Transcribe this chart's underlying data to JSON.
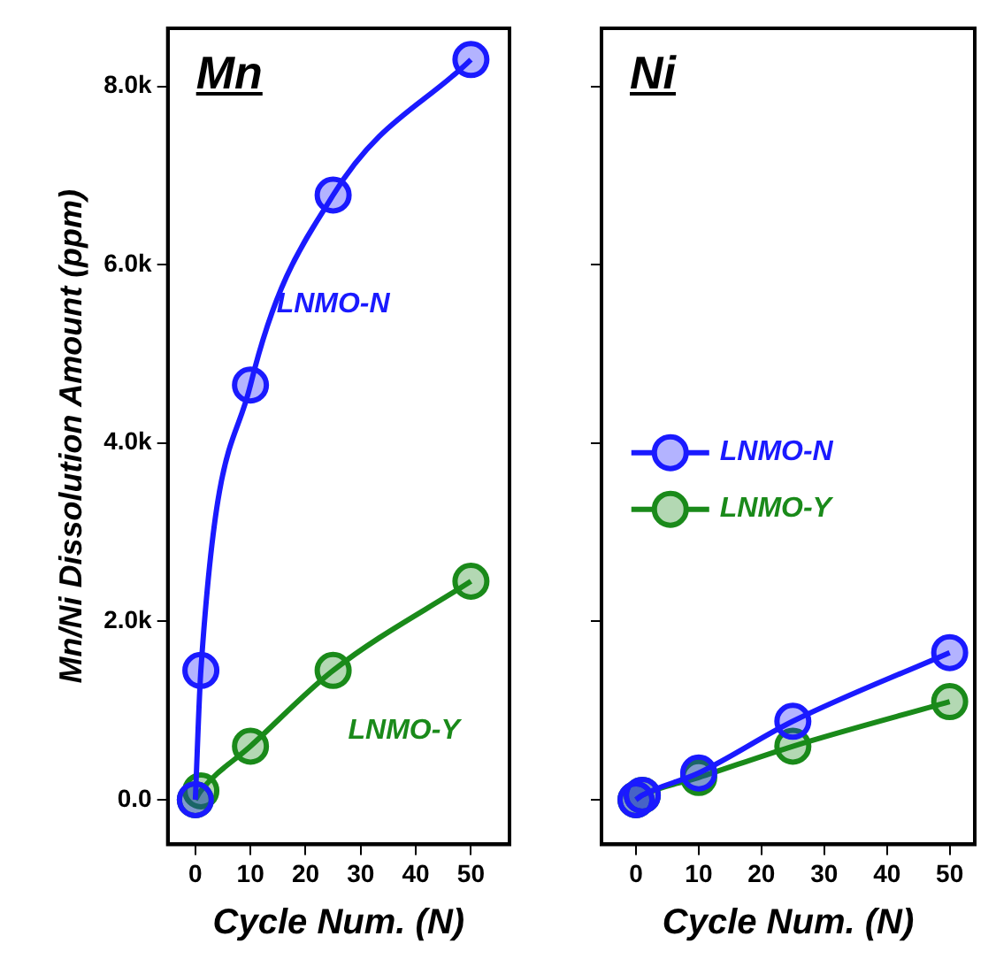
{
  "chart_data": [
    {
      "type": "line",
      "title": "Mn",
      "xlabel": "Cycle Num. (N)",
      "ylabel": "Mn/Ni Dissolution Amount (ppm)",
      "x": [
        0,
        1,
        10,
        25,
        50
      ],
      "xlim": [
        -5,
        57
      ],
      "xticks": [
        0,
        10,
        20,
        30,
        40,
        50
      ],
      "ylim": [
        -500,
        8650
      ],
      "yticks": [
        {
          "value": 0,
          "label": "0.0"
        },
        {
          "value": 2000,
          "label": "2.0k"
        },
        {
          "value": 4000,
          "label": "4.0k"
        },
        {
          "value": 6000,
          "label": "6.0k"
        },
        {
          "value": 8000,
          "label": "8.0k"
        }
      ],
      "marker": "circle",
      "line_style": "solid",
      "series": [
        {
          "name": "LNMO-N",
          "color": "#1a1aff",
          "values": [
            0,
            1450,
            4650,
            6780,
            8300
          ]
        },
        {
          "name": "LNMO-Y",
          "color": "#1a8a1a",
          "values": [
            0,
            100,
            600,
            1450,
            2450
          ]
        }
      ]
    },
    {
      "type": "line",
      "title": "Ni",
      "xlabel": "Cycle Num. (N)",
      "x": [
        0,
        1,
        10,
        25,
        50
      ],
      "xlim": [
        -5.5,
        54
      ],
      "xticks": [
        0,
        10,
        20,
        30,
        40,
        50
      ],
      "ylim": [
        -500,
        8650
      ],
      "yticks": [
        0,
        2000,
        4000,
        6000,
        8000
      ],
      "tick_labels": "x",
      "legend": "left",
      "marker": "circle",
      "line_style": "solid",
      "series": [
        {
          "name": "LNMO-N",
          "color": "#1a1aff",
          "values": [
            0,
            50,
            300,
            880,
            1650
          ]
        },
        {
          "name": "LNMO-Y",
          "color": "#1a8a1a",
          "values": [
            0,
            50,
            250,
            600,
            1100
          ]
        }
      ]
    }
  ]
}
